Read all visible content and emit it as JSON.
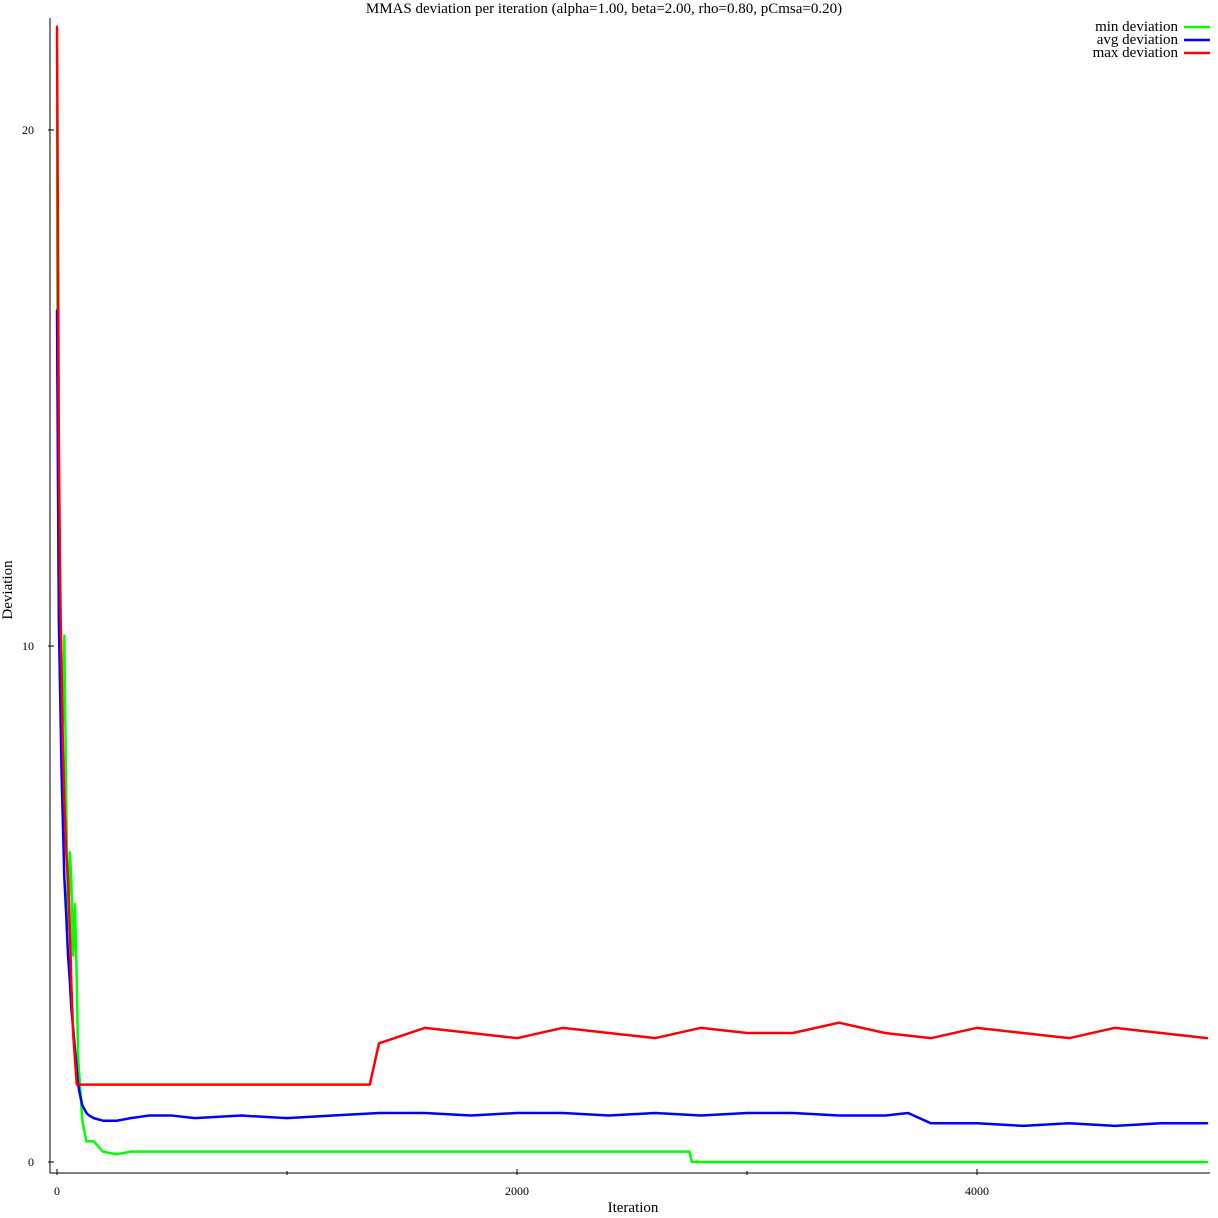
{
  "chart_data": {
    "type": "line",
    "title": "MMAS deviation per iteration (alpha=1.00, beta=2.00, rho=0.80, pCmsa=0.20)",
    "xlabel": "Iteration",
    "ylabel": "Deviation",
    "xlim": [
      0,
      5000
    ],
    "ylim": [
      0,
      22
    ],
    "xticks": [
      0,
      2000,
      4000
    ],
    "xticks_minor": [
      1000,
      3000
    ],
    "yticks": [
      0,
      10,
      20
    ],
    "grid": false,
    "legend_position": "top-right",
    "series": [
      {
        "name": "min deviation",
        "color": "#00ff00",
        "x": [
          0,
          2,
          4,
          6,
          8,
          12,
          16,
          20,
          26,
          32,
          40,
          48,
          56,
          62,
          70,
          78,
          86,
          92,
          100,
          110,
          128,
          140,
          160,
          200,
          260,
          320,
          400,
          500,
          600,
          800,
          1000,
          1200,
          1400,
          1600,
          1800,
          2000,
          2200,
          2400,
          2600,
          2750,
          2760,
          3000,
          3500,
          4000,
          4500,
          5000
        ],
        "values": [
          20.5,
          16.0,
          14.0,
          12.0,
          11.0,
          10.0,
          10.5,
          9.5,
          8.5,
          10.2,
          7.0,
          4.5,
          6.0,
          5.5,
          4.0,
          5.0,
          3.5,
          2.0,
          1.5,
          0.8,
          0.4,
          0.4,
          0.4,
          0.2,
          0.15,
          0.2,
          0.2,
          0.2,
          0.2,
          0.2,
          0.2,
          0.2,
          0.2,
          0.2,
          0.2,
          0.2,
          0.2,
          0.2,
          0.2,
          0.2,
          0.0,
          0.0,
          0.0,
          0.0,
          0.0,
          0.0
        ]
      },
      {
        "name": "avg deviation",
        "color": "#0000ff",
        "x": [
          0,
          2,
          4,
          6,
          8,
          12,
          16,
          20,
          26,
          32,
          40,
          48,
          56,
          62,
          70,
          78,
          86,
          92,
          100,
          110,
          128,
          140,
          160,
          200,
          260,
          320,
          400,
          500,
          600,
          800,
          1000,
          1200,
          1400,
          1600,
          1800,
          2000,
          2200,
          2400,
          2600,
          2800,
          3000,
          3200,
          3400,
          3600,
          3700,
          3800,
          4000,
          4200,
          4400,
          4600,
          4800,
          5000
        ],
        "values": [
          16.5,
          15.0,
          13.5,
          12.0,
          10.5,
          9.5,
          8.5,
          7.5,
          6.5,
          5.5,
          4.8,
          4.0,
          3.5,
          3.0,
          2.6,
          2.2,
          1.8,
          1.5,
          1.3,
          1.1,
          0.95,
          0.9,
          0.85,
          0.8,
          0.8,
          0.85,
          0.9,
          0.9,
          0.85,
          0.9,
          0.85,
          0.9,
          0.95,
          0.95,
          0.9,
          0.95,
          0.95,
          0.9,
          0.95,
          0.9,
          0.95,
          0.95,
          0.9,
          0.9,
          0.95,
          0.75,
          0.75,
          0.7,
          0.75,
          0.7,
          0.75,
          0.75
        ]
      },
      {
        "name": "max deviation",
        "color": "#ff0000",
        "x": [
          0,
          2,
          4,
          6,
          8,
          12,
          16,
          20,
          26,
          32,
          40,
          48,
          56,
          62,
          70,
          78,
          86,
          92,
          100,
          150,
          200,
          300,
          420,
          560,
          680,
          780,
          880,
          1000,
          1200,
          1360,
          1400,
          1600,
          1800,
          2000,
          2200,
          2400,
          2600,
          2800,
          3000,
          3200,
          3400,
          3600,
          3800,
          4000,
          4200,
          4400,
          4600,
          4800,
          5000
        ],
        "values": [
          22.0,
          20.0,
          18.0,
          16.0,
          14.0,
          12.0,
          10.5,
          9.5,
          8.0,
          7.0,
          6.0,
          5.5,
          4.5,
          3.5,
          2.5,
          2.0,
          1.5,
          1.5,
          1.5,
          1.5,
          1.5,
          1.5,
          1.5,
          1.5,
          1.5,
          1.5,
          1.5,
          1.5,
          1.5,
          1.5,
          2.3,
          2.6,
          2.5,
          2.4,
          2.6,
          2.5,
          2.4,
          2.6,
          2.5,
          2.5,
          2.7,
          2.5,
          2.4,
          2.6,
          2.5,
          2.4,
          2.6,
          2.5,
          2.4
        ]
      }
    ]
  }
}
